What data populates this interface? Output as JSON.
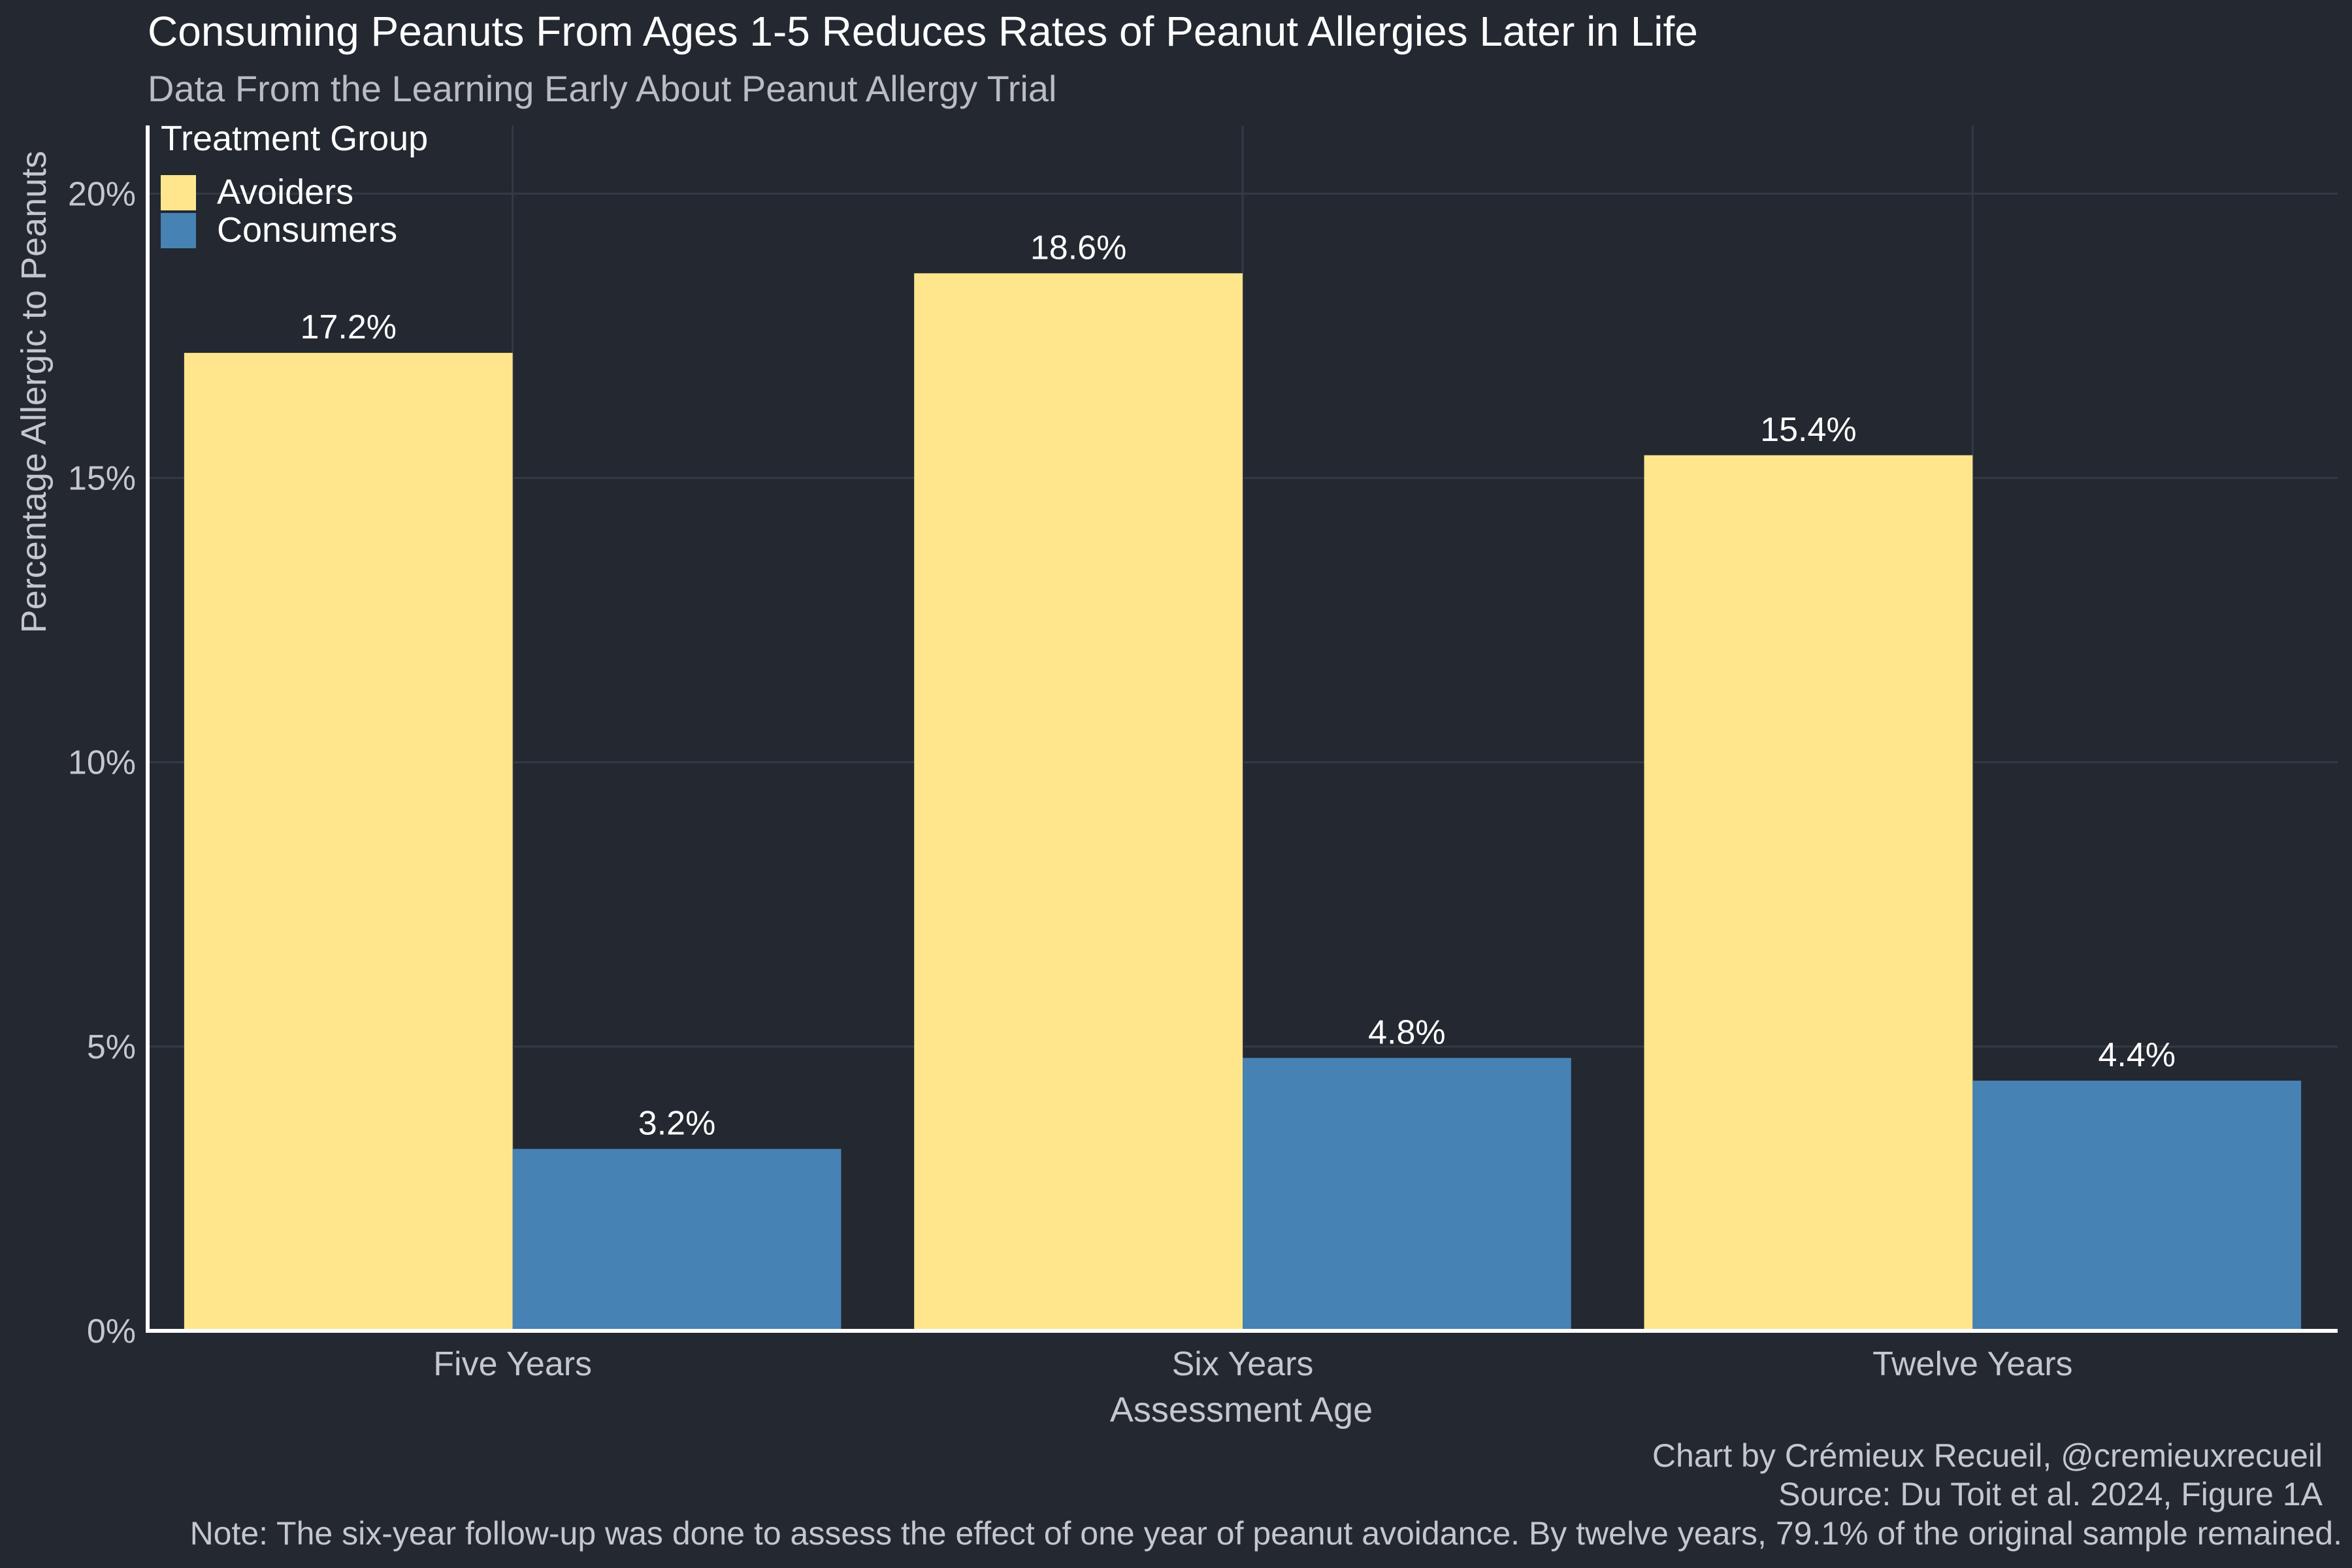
{
  "header": {
    "title": "Consuming Peanuts From Ages 1-5 Reduces Rates of Peanut Allergies Later in Life",
    "subtitle": "Data From the Learning Early About Peanut Allergy Trial"
  },
  "legend": {
    "title": "Treatment Group",
    "placement": "top-left"
  },
  "caption": {
    "line1": "Chart by Crémieux Recueil, @cremieuxrecueil",
    "line2": "Source: Du Toit et al. 2024, Figure 1A",
    "line3": "Note: The six-year follow-up was done to assess the effect of one year of peanut avoidance. By twelve years, 79.1% of the original sample remained."
  },
  "colors": {
    "background": "#232831",
    "avoiders": "#FFE68C",
    "consumers": "#4682B4"
  },
  "chart_data": {
    "type": "bar",
    "title": "Consuming Peanuts From Ages 1-5 Reduces Rates of Peanut Allergies Later in Life",
    "subtitle": "Data From the Learning Early About Peanut Allergy Trial",
    "xlabel": "Assessment Age",
    "ylabel": "Percentage Allergic to Peanuts",
    "categories": [
      "Five Years",
      "Six Years",
      "Twelve Years"
    ],
    "series": [
      {
        "name": "Avoiders",
        "values": [
          17.2,
          18.6,
          15.4
        ],
        "labels": [
          "17.2%",
          "18.6%",
          "15.4%"
        ],
        "color": "#FFE68C"
      },
      {
        "name": "Consumers",
        "values": [
          3.2,
          4.8,
          4.4
        ],
        "labels": [
          "3.2%",
          "4.8%",
          "4.4%"
        ],
        "color": "#4682B4"
      }
    ],
    "ylim": [
      0,
      21.2
    ],
    "yticks": [
      0,
      5,
      10,
      15,
      20
    ],
    "ytick_labels": [
      "0%",
      "5%",
      "10%",
      "15%",
      "20%"
    ],
    "grid": true,
    "legend": "top-left"
  }
}
